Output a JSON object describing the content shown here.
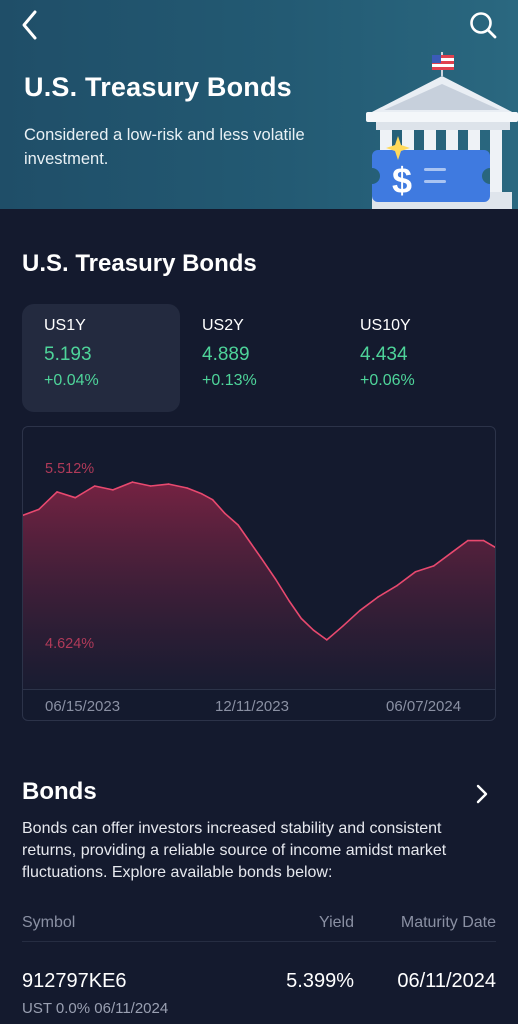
{
  "header": {
    "title": "U.S. Treasury Bonds",
    "subtitle": "Considered a low-risk and less volatile investment.",
    "back_icon": "chevron-left-icon",
    "search_icon": "search-icon"
  },
  "section": {
    "title": "U.S. Treasury Bonds"
  },
  "tickers": [
    {
      "symbol": "US1Y",
      "value": "5.193",
      "change": "+0.04%",
      "selected": true
    },
    {
      "symbol": "US2Y",
      "value": "4.889",
      "change": "+0.13%",
      "selected": false
    },
    {
      "symbol": "US10Y",
      "value": "4.434",
      "change": "+0.06%",
      "selected": false
    }
  ],
  "chart": {
    "high_label": "5.512%",
    "low_label": "4.624%",
    "x_labels": [
      "06/15/2023",
      "12/11/2023",
      "06/07/2024"
    ]
  },
  "chart_data": {
    "type": "area",
    "title": "",
    "xlabel": "",
    "ylabel": "",
    "x_tick_labels": [
      "06/15/2023",
      "12/11/2023",
      "06/07/2024"
    ],
    "ylim": [
      4.624,
      5.512
    ],
    "series": [
      {
        "x": [
          "2023-06-07",
          "2023-06-20",
          "2023-07-05",
          "2023-07-20",
          "2023-08-05",
          "2023-08-20",
          "2023-09-05",
          "2023-09-20",
          "2023-10-05",
          "2023-10-20",
          "2023-11-01",
          "2023-11-10",
          "2023-11-20",
          "2023-12-01",
          "2023-12-11",
          "2023-12-20",
          "2024-01-01",
          "2024-01-12",
          "2024-01-22",
          "2024-02-01",
          "2024-02-12",
          "2024-02-25",
          "2024-03-10",
          "2024-03-25",
          "2024-04-10",
          "2024-04-25",
          "2024-05-10",
          "2024-05-25",
          "2024-06-07",
          "2024-06-20",
          "2024-07-01"
        ],
        "values": [
          5.29,
          5.32,
          5.41,
          5.38,
          5.44,
          5.42,
          5.46,
          5.44,
          5.45,
          5.43,
          5.4,
          5.37,
          5.3,
          5.24,
          5.15,
          5.07,
          4.96,
          4.85,
          4.76,
          4.7,
          4.65,
          4.72,
          4.8,
          4.87,
          4.93,
          5.0,
          5.03,
          5.1,
          5.16,
          5.16,
          5.12
        ]
      }
    ],
    "colors": {
      "line": "#e8496f",
      "fill": "#7a2343"
    }
  },
  "bonds": {
    "title": "Bonds",
    "description": "Bonds can offer investors increased stability and consistent returns, providing a reliable source of income amidst market fluctuations. Explore available bonds below:",
    "columns": {
      "symbol": "Symbol",
      "yield": "Yield",
      "maturity": "Maturity Date"
    },
    "rows": [
      {
        "code": "912797KE6",
        "desc": "UST 0.0% 06/11/2024",
        "yield": "5.399%",
        "maturity": "06/11/2024"
      }
    ]
  },
  "colors": {
    "hero_bg": "#235a73",
    "page_bg": "#141a2e",
    "positive": "#4ed49a",
    "chart_label": "#b03a59"
  }
}
